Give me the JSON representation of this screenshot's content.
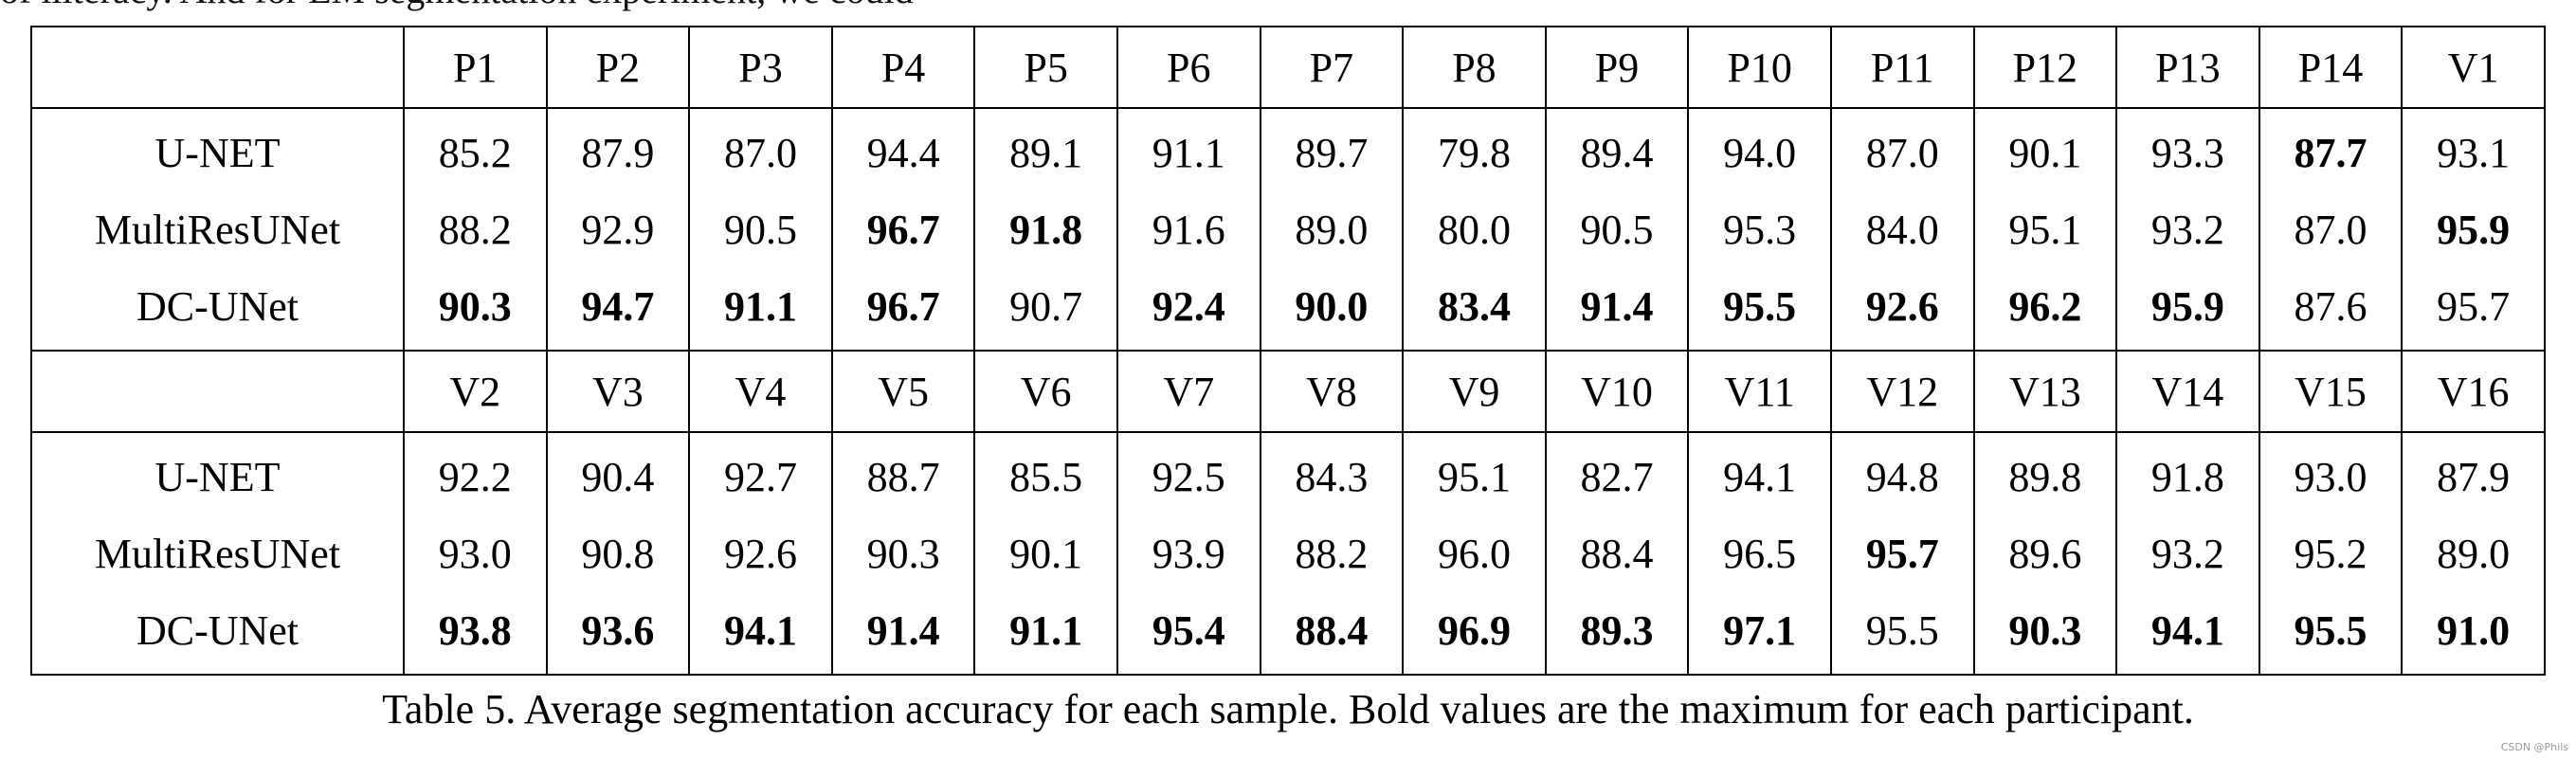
{
  "top_fragment": "of iliteracy. And for EM segmentation experiment, we could",
  "tables": [
    {
      "columns": [
        "P1",
        "P2",
        "P3",
        "P4",
        "P5",
        "P6",
        "P7",
        "P8",
        "P9",
        "P10",
        "P11",
        "P12",
        "P13",
        "P14",
        "V1"
      ],
      "rows": [
        {
          "method": "U-NET",
          "values": [
            "85.2",
            "87.9",
            "87.0",
            "94.4",
            "89.1",
            "91.1",
            "89.7",
            "79.8",
            "89.4",
            "94.0",
            "87.0",
            "90.1",
            "93.3",
            "87.7",
            "93.1"
          ],
          "bold": [
            false,
            false,
            false,
            false,
            false,
            false,
            false,
            false,
            false,
            false,
            false,
            false,
            false,
            true,
            false
          ]
        },
        {
          "method": "MultiResUNet",
          "values": [
            "88.2",
            "92.9",
            "90.5",
            "96.7",
            "91.8",
            "91.6",
            "89.0",
            "80.0",
            "90.5",
            "95.3",
            "84.0",
            "95.1",
            "93.2",
            "87.0",
            "95.9"
          ],
          "bold": [
            false,
            false,
            false,
            true,
            true,
            false,
            false,
            false,
            false,
            false,
            false,
            false,
            false,
            false,
            true
          ]
        },
        {
          "method": "DC-UNet",
          "values": [
            "90.3",
            "94.7",
            "91.1",
            "96.7",
            "90.7",
            "92.4",
            "90.0",
            "83.4",
            "91.4",
            "95.5",
            "92.6",
            "96.2",
            "95.9",
            "87.6",
            "95.7"
          ],
          "bold": [
            true,
            true,
            true,
            true,
            false,
            true,
            true,
            true,
            true,
            true,
            true,
            true,
            true,
            false,
            false
          ]
        }
      ]
    },
    {
      "columns": [
        "V2",
        "V3",
        "V4",
        "V5",
        "V6",
        "V7",
        "V8",
        "V9",
        "V10",
        "V11",
        "V12",
        "V13",
        "V14",
        "V15",
        "V16"
      ],
      "rows": [
        {
          "method": "U-NET",
          "values": [
            "92.2",
            "90.4",
            "92.7",
            "88.7",
            "85.5",
            "92.5",
            "84.3",
            "95.1",
            "82.7",
            "94.1",
            "94.8",
            "89.8",
            "91.8",
            "93.0",
            "87.9"
          ],
          "bold": [
            false,
            false,
            false,
            false,
            false,
            false,
            false,
            false,
            false,
            false,
            false,
            false,
            false,
            false,
            false
          ]
        },
        {
          "method": "MultiResUNet",
          "values": [
            "93.0",
            "90.8",
            "92.6",
            "90.3",
            "90.1",
            "93.9",
            "88.2",
            "96.0",
            "88.4",
            "96.5",
            "95.7",
            "89.6",
            "93.2",
            "95.2",
            "89.0"
          ],
          "bold": [
            false,
            false,
            false,
            false,
            false,
            false,
            false,
            false,
            false,
            false,
            true,
            false,
            false,
            false,
            false
          ]
        },
        {
          "method": "DC-UNet",
          "values": [
            "93.8",
            "93.6",
            "94.1",
            "91.4",
            "91.1",
            "95.4",
            "88.4",
            "96.9",
            "89.3",
            "97.1",
            "95.5",
            "90.3",
            "94.1",
            "95.5",
            "91.0"
          ],
          "bold": [
            true,
            true,
            true,
            true,
            true,
            true,
            true,
            true,
            true,
            true,
            false,
            true,
            true,
            true,
            true
          ]
        }
      ]
    }
  ],
  "caption": "Table 5. Average segmentation accuracy for each sample. Bold values are the maximum for each participant.",
  "watermark": "CSDN @Phils"
}
